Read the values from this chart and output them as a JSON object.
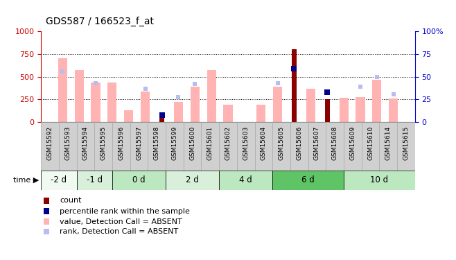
{
  "title": "GDS587 / 166523_f_at",
  "samples": [
    "GSM15592",
    "GSM15593",
    "GSM15594",
    "GSM15595",
    "GSM15596",
    "GSM15597",
    "GSM15598",
    "GSM15599",
    "GSM15600",
    "GSM15601",
    "GSM15602",
    "GSM15603",
    "GSM15604",
    "GSM15605",
    "GSM15606",
    "GSM15607",
    "GSM15608",
    "GSM15609",
    "GSM15610",
    "GSM15614",
    "GSM15615"
  ],
  "value_absent": [
    700,
    570,
    440,
    440,
    130,
    340,
    null,
    220,
    390,
    570,
    190,
    null,
    190,
    390,
    null,
    370,
    null,
    270,
    280,
    470,
    260
  ],
  "rank_absent": [
    560,
    null,
    430,
    null,
    null,
    370,
    null,
    280,
    420,
    null,
    null,
    null,
    null,
    430,
    null,
    null,
    null,
    null,
    390,
    500,
    310
  ],
  "count": [
    null,
    null,
    null,
    null,
    null,
    null,
    70,
    null,
    null,
    null,
    null,
    null,
    null,
    null,
    800,
    null,
    250,
    null,
    null,
    null,
    null
  ],
  "percentile": [
    null,
    null,
    null,
    null,
    null,
    null,
    80,
    null,
    null,
    null,
    null,
    null,
    null,
    null,
    590,
    null,
    330,
    null,
    null,
    null,
    null
  ],
  "time_groups": [
    {
      "label": "-2 d",
      "start": 0,
      "end": 2,
      "color": "#f0faf0"
    },
    {
      "label": "-1 d",
      "start": 2,
      "end": 4,
      "color": "#d8f0da"
    },
    {
      "label": "0 d",
      "start": 4,
      "end": 7,
      "color": "#bce8bf"
    },
    {
      "label": "2 d",
      "start": 7,
      "end": 10,
      "color": "#d8f0da"
    },
    {
      "label": "4 d",
      "start": 10,
      "end": 13,
      "color": "#bce8bf"
    },
    {
      "label": "6 d",
      "start": 13,
      "end": 17,
      "color": "#5ec465"
    },
    {
      "label": "10 d",
      "start": 17,
      "end": 21,
      "color": "#bce8bf"
    }
  ],
  "ylim_left": [
    0,
    1000
  ],
  "ylim_right": [
    0,
    100
  ],
  "yticks_left": [
    0,
    250,
    500,
    750,
    1000
  ],
  "yticks_right": [
    0,
    25,
    50,
    75,
    100
  ],
  "value_color": "#ffb3b3",
  "rank_color": "#b8bcee",
  "count_color": "#8b0000",
  "percentile_color": "#00008b",
  "grid_color": "black",
  "bg_color": "white",
  "title_color": "black",
  "left_axis_color": "#cc0000",
  "right_axis_color": "#0000cc",
  "xlabel_box_color": "#d0d0d0",
  "xlabel_box_edge": "#aaaaaa"
}
